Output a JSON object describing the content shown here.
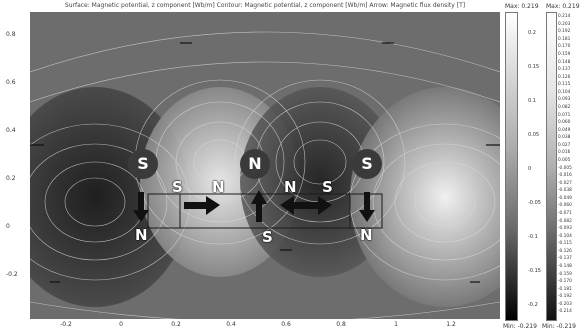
{
  "title": "Surface: Magnetic potential, z component [Wb/m]   Contour: Magnetic potential, z component [Wb/m]   Arrow: Magnetic flux density [T]",
  "y_ticks": [
    "0.8",
    "0.6",
    "0.4",
    "0.2",
    "0",
    "-0.2"
  ],
  "x_ticks": [
    "-0.2",
    "0",
    "0.2",
    "0.4",
    "0.6",
    "0.8",
    "1",
    "1.2"
  ],
  "colorbar_surface": {
    "max": "Max: 0.219",
    "min": "Min: -0.219",
    "ticks": [
      "0.2",
      "0.15",
      "0.1",
      "0.05",
      "0",
      "-0.05",
      "-0.1",
      "-0.15",
      "-0.2"
    ]
  },
  "colorbar_contour": {
    "max": "Max: 0.219",
    "min": "Min: -0.219",
    "ticks": [
      "0.214",
      "0.203",
      "0.192",
      "0.181",
      "0.170",
      "0.159",
      "0.148",
      "0.137",
      "0.126",
      "0.115",
      "0.104",
      "0.093",
      "0.082",
      "0.071",
      "0.060",
      "0.049",
      "0.038",
      "0.027",
      "0.016",
      "0.005",
      "-0.005",
      "-0.016",
      "-0.027",
      "-0.038",
      "-0.049",
      "-0.060",
      "-0.071",
      "-0.082",
      "-0.093",
      "-0.104",
      "-0.115",
      "-0.126",
      "-0.137",
      "-0.148",
      "-0.159",
      "-0.170",
      "-0.181",
      "-0.192",
      "-0.203",
      "-0.214"
    ]
  },
  "poles": {
    "top_left": "S",
    "top_middle": "N",
    "top_right": "S",
    "bottom_left": "N",
    "bottom_middle": "S",
    "bottom_right": "N",
    "bar_left_s": "S",
    "bar_left_n": "N",
    "bar_right_n": "N",
    "bar_right_s": "S"
  },
  "colors": {
    "pole_fill": "#3a3a3a",
    "arrow": "#000000"
  }
}
